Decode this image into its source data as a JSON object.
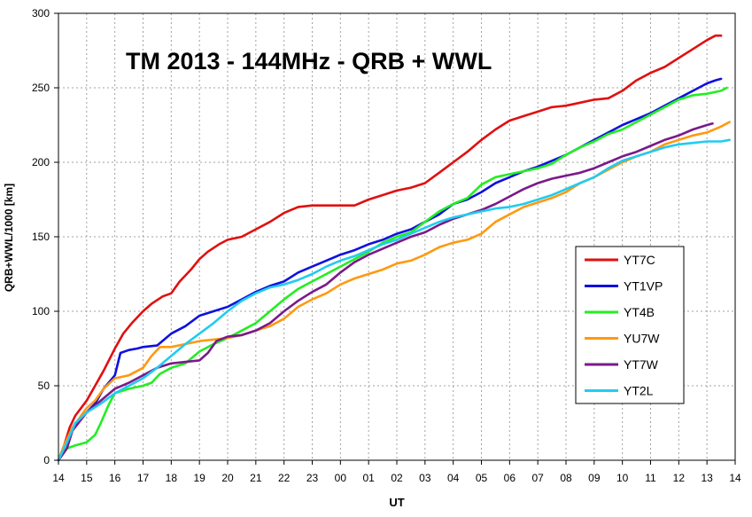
{
  "chart_data": {
    "type": "line",
    "title": "TM 2013 - 144MHz - QRB + WWL",
    "xlabel": "UT",
    "ylabel": "QRB+WWL/1000 [km]",
    "ylim": [
      0,
      300
    ],
    "yticks": [
      0,
      50,
      100,
      150,
      200,
      250,
      300
    ],
    "x_tick_labels": [
      "14",
      "15",
      "16",
      "17",
      "18",
      "19",
      "20",
      "21",
      "22",
      "23",
      "00",
      "01",
      "02",
      "03",
      "04",
      "05",
      "06",
      "07",
      "08",
      "09",
      "10",
      "11",
      "12",
      "13",
      "14"
    ],
    "x_range": [
      14,
      38
    ],
    "grid": true,
    "legend_position": "right",
    "series": [
      {
        "name": "YT7C",
        "color": "#e01010",
        "points": [
          [
            14.0,
            0
          ],
          [
            14.2,
            10
          ],
          [
            14.4,
            22
          ],
          [
            14.6,
            30
          ],
          [
            15.0,
            40
          ],
          [
            15.3,
            50
          ],
          [
            15.6,
            60
          ],
          [
            16.0,
            75
          ],
          [
            16.3,
            85
          ],
          [
            16.6,
            92
          ],
          [
            17.0,
            100
          ],
          [
            17.3,
            105
          ],
          [
            17.7,
            110
          ],
          [
            18.0,
            112
          ],
          [
            18.3,
            120
          ],
          [
            18.7,
            128
          ],
          [
            19.0,
            135
          ],
          [
            19.3,
            140
          ],
          [
            19.7,
            145
          ],
          [
            20.0,
            148
          ],
          [
            20.5,
            150
          ],
          [
            21.0,
            155
          ],
          [
            21.5,
            160
          ],
          [
            22.0,
            166
          ],
          [
            22.5,
            170
          ],
          [
            23.0,
            171
          ],
          [
            24.0,
            171
          ],
          [
            24.5,
            171
          ],
          [
            25.0,
            175
          ],
          [
            25.5,
            178
          ],
          [
            26.0,
            181
          ],
          [
            26.5,
            183
          ],
          [
            27.0,
            186
          ],
          [
            27.5,
            193
          ],
          [
            28.0,
            200
          ],
          [
            28.5,
            207
          ],
          [
            29.0,
            215
          ],
          [
            29.5,
            222
          ],
          [
            30.0,
            228
          ],
          [
            30.5,
            231
          ],
          [
            31.0,
            234
          ],
          [
            31.5,
            237
          ],
          [
            32.0,
            238
          ],
          [
            32.5,
            240
          ],
          [
            33.0,
            242
          ],
          [
            33.5,
            243
          ],
          [
            34.0,
            248
          ],
          [
            34.5,
            255
          ],
          [
            35.0,
            260
          ],
          [
            35.5,
            264
          ],
          [
            36.0,
            270
          ],
          [
            36.5,
            276
          ],
          [
            37.0,
            282
          ],
          [
            37.3,
            285
          ],
          [
            37.5,
            285
          ]
        ]
      },
      {
        "name": "YT1VP",
        "color": "#1010e0",
        "points": [
          [
            14.0,
            0
          ],
          [
            14.2,
            8
          ],
          [
            14.4,
            18
          ],
          [
            14.6,
            25
          ],
          [
            15.0,
            32
          ],
          [
            15.3,
            38
          ],
          [
            15.6,
            48
          ],
          [
            16.0,
            57
          ],
          [
            16.2,
            72
          ],
          [
            16.5,
            74
          ],
          [
            16.8,
            75
          ],
          [
            17.0,
            76
          ],
          [
            17.5,
            77
          ],
          [
            18.0,
            85
          ],
          [
            18.5,
            90
          ],
          [
            19.0,
            97
          ],
          [
            19.5,
            100
          ],
          [
            20.0,
            103
          ],
          [
            20.5,
            108
          ],
          [
            21.0,
            113
          ],
          [
            21.5,
            117
          ],
          [
            22.0,
            120
          ],
          [
            22.5,
            126
          ],
          [
            23.0,
            130
          ],
          [
            23.5,
            134
          ],
          [
            24.0,
            138
          ],
          [
            24.5,
            141
          ],
          [
            25.0,
            145
          ],
          [
            25.5,
            148
          ],
          [
            26.0,
            152
          ],
          [
            26.5,
            155
          ],
          [
            27.0,
            160
          ],
          [
            27.5,
            165
          ],
          [
            28.0,
            172
          ],
          [
            28.5,
            175
          ],
          [
            29.0,
            180
          ],
          [
            29.5,
            186
          ],
          [
            30.0,
            190
          ],
          [
            30.5,
            194
          ],
          [
            31.0,
            197
          ],
          [
            31.5,
            201
          ],
          [
            32.0,
            205
          ],
          [
            32.5,
            210
          ],
          [
            33.0,
            215
          ],
          [
            33.5,
            220
          ],
          [
            34.0,
            225
          ],
          [
            34.5,
            229
          ],
          [
            35.0,
            233
          ],
          [
            35.5,
            238
          ],
          [
            36.0,
            243
          ],
          [
            36.5,
            248
          ],
          [
            37.0,
            253
          ],
          [
            37.3,
            255
          ],
          [
            37.5,
            256
          ]
        ]
      },
      {
        "name": "YT4B",
        "color": "#22ee22",
        "points": [
          [
            14.0,
            0
          ],
          [
            14.3,
            8
          ],
          [
            14.6,
            10
          ],
          [
            15.0,
            12
          ],
          [
            15.3,
            17
          ],
          [
            15.5,
            25
          ],
          [
            15.8,
            38
          ],
          [
            16.0,
            45
          ],
          [
            16.5,
            48
          ],
          [
            17.0,
            50
          ],
          [
            17.3,
            52
          ],
          [
            17.6,
            58
          ],
          [
            18.0,
            62
          ],
          [
            18.5,
            65
          ],
          [
            19.0,
            73
          ],
          [
            19.5,
            78
          ],
          [
            20.0,
            82
          ],
          [
            20.5,
            87
          ],
          [
            21.0,
            92
          ],
          [
            21.5,
            100
          ],
          [
            22.0,
            108
          ],
          [
            22.5,
            115
          ],
          [
            23.0,
            120
          ],
          [
            23.5,
            125
          ],
          [
            24.0,
            130
          ],
          [
            24.5,
            135
          ],
          [
            25.0,
            140
          ],
          [
            25.5,
            146
          ],
          [
            26.0,
            150
          ],
          [
            26.5,
            153
          ],
          [
            27.0,
            160
          ],
          [
            27.5,
            167
          ],
          [
            28.0,
            172
          ],
          [
            28.5,
            176
          ],
          [
            29.0,
            185
          ],
          [
            29.5,
            190
          ],
          [
            30.0,
            192
          ],
          [
            30.5,
            194
          ],
          [
            31.0,
            196
          ],
          [
            31.5,
            199
          ],
          [
            32.0,
            205
          ],
          [
            32.5,
            210
          ],
          [
            33.0,
            214
          ],
          [
            33.5,
            219
          ],
          [
            34.0,
            222
          ],
          [
            34.5,
            227
          ],
          [
            35.0,
            232
          ],
          [
            35.5,
            237
          ],
          [
            36.0,
            242
          ],
          [
            36.5,
            245
          ],
          [
            37.0,
            246
          ],
          [
            37.5,
            248
          ],
          [
            37.7,
            250
          ]
        ]
      },
      {
        "name": "YU7W",
        "color": "#ff9910",
        "points": [
          [
            14.0,
            0
          ],
          [
            14.2,
            10
          ],
          [
            14.5,
            22
          ],
          [
            15.0,
            35
          ],
          [
            15.3,
            40
          ],
          [
            15.6,
            48
          ],
          [
            16.0,
            55
          ],
          [
            16.5,
            57
          ],
          [
            17.0,
            62
          ],
          [
            17.3,
            70
          ],
          [
            17.6,
            76
          ],
          [
            18.0,
            76
          ],
          [
            18.5,
            78
          ],
          [
            19.0,
            80
          ],
          [
            19.5,
            81
          ],
          [
            20.0,
            82
          ],
          [
            20.5,
            84
          ],
          [
            21.0,
            87
          ],
          [
            21.5,
            90
          ],
          [
            22.0,
            95
          ],
          [
            22.5,
            103
          ],
          [
            23.0,
            108
          ],
          [
            23.5,
            112
          ],
          [
            24.0,
            118
          ],
          [
            24.5,
            122
          ],
          [
            25.0,
            125
          ],
          [
            25.5,
            128
          ],
          [
            26.0,
            132
          ],
          [
            26.5,
            134
          ],
          [
            27.0,
            138
          ],
          [
            27.5,
            143
          ],
          [
            28.0,
            146
          ],
          [
            28.5,
            148
          ],
          [
            29.0,
            152
          ],
          [
            29.5,
            160
          ],
          [
            30.0,
            165
          ],
          [
            30.5,
            170
          ],
          [
            31.0,
            173
          ],
          [
            31.5,
            176
          ],
          [
            32.0,
            180
          ],
          [
            32.5,
            186
          ],
          [
            33.0,
            190
          ],
          [
            33.5,
            195
          ],
          [
            34.0,
            200
          ],
          [
            34.5,
            204
          ],
          [
            35.0,
            207
          ],
          [
            35.5,
            212
          ],
          [
            36.0,
            215
          ],
          [
            36.5,
            218
          ],
          [
            37.0,
            220
          ],
          [
            37.5,
            224
          ],
          [
            37.8,
            227
          ]
        ]
      },
      {
        "name": "YT7W",
        "color": "#7a1a8a",
        "points": [
          [
            14.0,
            0
          ],
          [
            14.3,
            8
          ],
          [
            14.5,
            20
          ],
          [
            15.0,
            32
          ],
          [
            15.5,
            40
          ],
          [
            16.0,
            48
          ],
          [
            16.5,
            52
          ],
          [
            17.0,
            57
          ],
          [
            17.5,
            62
          ],
          [
            18.0,
            65
          ],
          [
            18.5,
            66
          ],
          [
            19.0,
            67
          ],
          [
            19.3,
            72
          ],
          [
            19.6,
            80
          ],
          [
            20.0,
            83
          ],
          [
            20.5,
            84
          ],
          [
            21.0,
            87
          ],
          [
            21.5,
            92
          ],
          [
            22.0,
            100
          ],
          [
            22.5,
            107
          ],
          [
            23.0,
            113
          ],
          [
            23.5,
            118
          ],
          [
            24.0,
            126
          ],
          [
            24.5,
            133
          ],
          [
            25.0,
            138
          ],
          [
            25.5,
            142
          ],
          [
            26.0,
            146
          ],
          [
            26.5,
            150
          ],
          [
            27.0,
            153
          ],
          [
            27.5,
            158
          ],
          [
            28.0,
            162
          ],
          [
            28.5,
            165
          ],
          [
            29.0,
            168
          ],
          [
            29.5,
            172
          ],
          [
            30.0,
            177
          ],
          [
            30.5,
            182
          ],
          [
            31.0,
            186
          ],
          [
            31.5,
            189
          ],
          [
            32.0,
            191
          ],
          [
            32.5,
            193
          ],
          [
            33.0,
            196
          ],
          [
            33.5,
            200
          ],
          [
            34.0,
            204
          ],
          [
            34.5,
            207
          ],
          [
            35.0,
            211
          ],
          [
            35.5,
            215
          ],
          [
            36.0,
            218
          ],
          [
            36.5,
            222
          ],
          [
            37.0,
            225
          ],
          [
            37.2,
            226
          ]
        ]
      },
      {
        "name": "YT2L",
        "color": "#20ccf0",
        "points": [
          [
            14.0,
            0
          ],
          [
            14.3,
            12
          ],
          [
            14.6,
            25
          ],
          [
            15.0,
            32
          ],
          [
            15.5,
            38
          ],
          [
            16.0,
            45
          ],
          [
            16.5,
            50
          ],
          [
            17.0,
            55
          ],
          [
            17.5,
            62
          ],
          [
            18.0,
            70
          ],
          [
            18.5,
            78
          ],
          [
            19.0,
            85
          ],
          [
            19.5,
            92
          ],
          [
            20.0,
            100
          ],
          [
            20.5,
            107
          ],
          [
            21.0,
            112
          ],
          [
            21.5,
            116
          ],
          [
            22.0,
            118
          ],
          [
            22.5,
            121
          ],
          [
            23.0,
            125
          ],
          [
            23.5,
            130
          ],
          [
            24.0,
            134
          ],
          [
            24.5,
            137
          ],
          [
            25.0,
            141
          ],
          [
            25.5,
            145
          ],
          [
            26.0,
            148
          ],
          [
            26.5,
            152
          ],
          [
            27.0,
            156
          ],
          [
            27.5,
            160
          ],
          [
            28.0,
            163
          ],
          [
            28.5,
            165
          ],
          [
            29.0,
            167
          ],
          [
            29.5,
            169
          ],
          [
            30.0,
            170
          ],
          [
            30.5,
            172
          ],
          [
            31.0,
            175
          ],
          [
            31.5,
            178
          ],
          [
            32.0,
            182
          ],
          [
            32.5,
            186
          ],
          [
            33.0,
            190
          ],
          [
            33.5,
            196
          ],
          [
            34.0,
            201
          ],
          [
            34.5,
            204
          ],
          [
            35.0,
            207
          ],
          [
            35.5,
            210
          ],
          [
            36.0,
            212
          ],
          [
            36.5,
            213
          ],
          [
            37.0,
            214
          ],
          [
            37.5,
            214
          ],
          [
            37.8,
            215
          ]
        ]
      }
    ]
  }
}
